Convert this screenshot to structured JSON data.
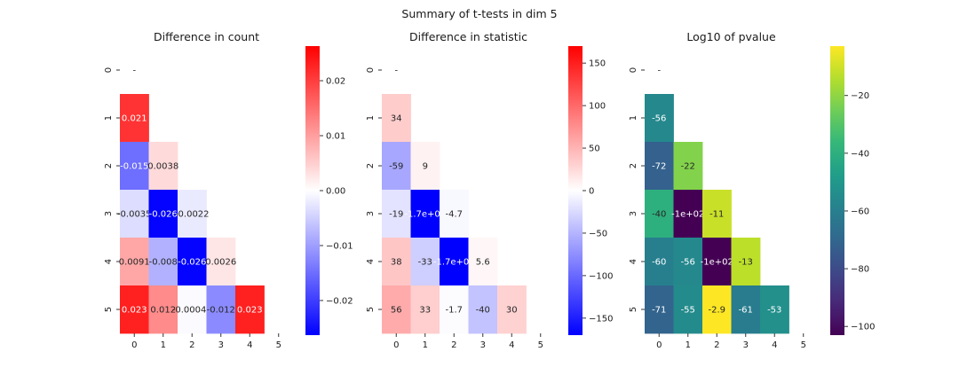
{
  "figure": {
    "suptitle": "Summary of t-tests in dim 5"
  },
  "chart_data": [
    {
      "type": "heatmap",
      "title": "Difference in count",
      "xlabel": "",
      "ylabel": "",
      "x_ticks": [
        "0",
        "1",
        "2",
        "3",
        "4",
        "5"
      ],
      "y_ticks": [
        "0",
        "1",
        "2",
        "3",
        "4",
        "5"
      ],
      "colormap": "bwr",
      "colormap_stops": [
        "#0000ff",
        "#ffffff",
        "#ff0000"
      ],
      "vmin": -0.0263,
      "vmax": 0.0263,
      "colorbar_ticks": [
        -0.02,
        -0.01,
        0.0,
        0.01,
        0.02
      ],
      "colorbar_tick_labels": [
        "−0.02",
        "−0.01",
        "0.00",
        "0.01",
        "0.02"
      ],
      "lower_triangle": true,
      "diagonal_labels": [
        "-",
        "",
        "",
        "",
        "",
        ""
      ],
      "cells": [
        {
          "row": 1,
          "col": 0,
          "value": 0.021,
          "label": "0.021"
        },
        {
          "row": 2,
          "col": 0,
          "value": -0.015,
          "label": "-0.015"
        },
        {
          "row": 2,
          "col": 1,
          "value": 0.0038,
          "label": "0.0038"
        },
        {
          "row": 3,
          "col": 0,
          "value": -0.0035,
          "label": "-0.0035"
        },
        {
          "row": 3,
          "col": 1,
          "value": -0.026,
          "label": "-0.026"
        },
        {
          "row": 3,
          "col": 2,
          "value": -0.0022,
          "label": "-0.0022"
        },
        {
          "row": 4,
          "col": 0,
          "value": 0.0091,
          "label": "0.0091"
        },
        {
          "row": 4,
          "col": 1,
          "value": -0.008,
          "label": "-0.008"
        },
        {
          "row": 4,
          "col": 2,
          "value": -0.026,
          "label": "-0.026"
        },
        {
          "row": 4,
          "col": 3,
          "value": 0.0026,
          "label": "0.0026"
        },
        {
          "row": 5,
          "col": 0,
          "value": 0.023,
          "label": "0.023"
        },
        {
          "row": 5,
          "col": 1,
          "value": 0.012,
          "label": "0.012"
        },
        {
          "row": 5,
          "col": 2,
          "value": -0.00048,
          "label": "-0.00048"
        },
        {
          "row": 5,
          "col": 3,
          "value": -0.012,
          "label": "-0.012"
        },
        {
          "row": 5,
          "col": 4,
          "value": 0.023,
          "label": "0.023"
        }
      ]
    },
    {
      "type": "heatmap",
      "title": "Difference in statistic",
      "xlabel": "",
      "ylabel": "",
      "x_ticks": [
        "0",
        "1",
        "2",
        "3",
        "4",
        "5"
      ],
      "y_ticks": [
        "0",
        "1",
        "2",
        "3",
        "4",
        "5"
      ],
      "colormap": "bwr",
      "colormap_stops": [
        "#0000ff",
        "#ffffff",
        "#ff0000"
      ],
      "vmin": -170,
      "vmax": 170,
      "colorbar_ticks": [
        -150,
        -100,
        -50,
        0,
        50,
        100,
        150
      ],
      "colorbar_tick_labels": [
        "−150",
        "−100",
        "−50",
        "0",
        "50",
        "100",
        "150"
      ],
      "lower_triangle": true,
      "diagonal_labels": [
        "-",
        "",
        "",
        "",
        "",
        ""
      ],
      "cells": [
        {
          "row": 1,
          "col": 0,
          "value": 34,
          "label": "34"
        },
        {
          "row": 2,
          "col": 0,
          "value": -59,
          "label": "-59"
        },
        {
          "row": 2,
          "col": 1,
          "value": 9,
          "label": "9"
        },
        {
          "row": 3,
          "col": 0,
          "value": -19,
          "label": "-19"
        },
        {
          "row": 3,
          "col": 1,
          "value": -170,
          "label": "-1.7e+02"
        },
        {
          "row": 3,
          "col": 2,
          "value": -4.7,
          "label": "-4.7"
        },
        {
          "row": 4,
          "col": 0,
          "value": 38,
          "label": "38"
        },
        {
          "row": 4,
          "col": 1,
          "value": -33,
          "label": "-33"
        },
        {
          "row": 4,
          "col": 2,
          "value": -170,
          "label": "-1.7e+02"
        },
        {
          "row": 4,
          "col": 3,
          "value": 5.6,
          "label": "5.6"
        },
        {
          "row": 5,
          "col": 0,
          "value": 56,
          "label": "56"
        },
        {
          "row": 5,
          "col": 1,
          "value": 33,
          "label": "33"
        },
        {
          "row": 5,
          "col": 2,
          "value": -1.7,
          "label": "-1.7"
        },
        {
          "row": 5,
          "col": 3,
          "value": -40,
          "label": "-40"
        },
        {
          "row": 5,
          "col": 4,
          "value": 30,
          "label": "30"
        }
      ]
    },
    {
      "type": "heatmap",
      "title": "Log10 of pvalue",
      "xlabel": "",
      "ylabel": "",
      "x_ticks": [
        "0",
        "1",
        "2",
        "3",
        "4",
        "5"
      ],
      "y_ticks": [
        "0",
        "1",
        "2",
        "3",
        "4",
        "5"
      ],
      "colormap": "viridis",
      "colormap_stops": [
        "#440154",
        "#482878",
        "#3e4989",
        "#31688e",
        "#26828e",
        "#1f9e89",
        "#35b779",
        "#6ece58",
        "#b5de2b",
        "#fde725"
      ],
      "vmin": -103,
      "vmax": -2.9,
      "colorbar_ticks": [
        -100,
        -80,
        -60,
        -40,
        -20
      ],
      "colorbar_tick_labels": [
        "−100",
        "−80",
        "−60",
        "−40",
        "−20"
      ],
      "lower_triangle": true,
      "diagonal_labels": [
        "-",
        "",
        "",
        "",
        "",
        ""
      ],
      "cells": [
        {
          "row": 1,
          "col": 0,
          "value": -56,
          "label": "-56"
        },
        {
          "row": 2,
          "col": 0,
          "value": -72,
          "label": "-72"
        },
        {
          "row": 2,
          "col": 1,
          "value": -22,
          "label": "-22"
        },
        {
          "row": 3,
          "col": 0,
          "value": -40,
          "label": "-40"
        },
        {
          "row": 3,
          "col": 1,
          "value": -103,
          "label": "-1e+02"
        },
        {
          "row": 3,
          "col": 2,
          "value": -11,
          "label": "-11"
        },
        {
          "row": 4,
          "col": 0,
          "value": -60,
          "label": "-60"
        },
        {
          "row": 4,
          "col": 1,
          "value": -56,
          "label": "-56"
        },
        {
          "row": 4,
          "col": 2,
          "value": -103,
          "label": "-1e+02"
        },
        {
          "row": 4,
          "col": 3,
          "value": -13,
          "label": "-13"
        },
        {
          "row": 5,
          "col": 0,
          "value": -71,
          "label": "-71"
        },
        {
          "row": 5,
          "col": 1,
          "value": -55,
          "label": "-55"
        },
        {
          "row": 5,
          "col": 2,
          "value": -2.9,
          "label": "-2.9"
        },
        {
          "row": 5,
          "col": 3,
          "value": -61,
          "label": "-61"
        },
        {
          "row": 5,
          "col": 4,
          "value": -53,
          "label": "-53"
        }
      ]
    }
  ]
}
